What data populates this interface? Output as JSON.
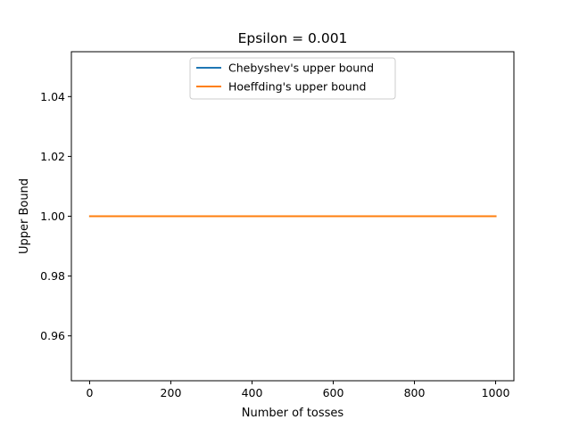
{
  "chart_data": {
    "type": "line",
    "title": "Epsilon = 0.001",
    "xlabel": "Number of tosses",
    "ylabel": "Upper Bound",
    "xlim": [
      -45,
      1045
    ],
    "ylim": [
      0.945,
      1.055
    ],
    "x_ticks": [
      0,
      200,
      400,
      600,
      800,
      1000
    ],
    "x_tick_labels": [
      "0",
      "200",
      "400",
      "600",
      "800",
      "1000"
    ],
    "y_ticks": [
      0.96,
      0.98,
      1.0,
      1.02,
      1.04
    ],
    "y_tick_labels": [
      "0.96",
      "0.98",
      "1.00",
      "1.02",
      "1.04"
    ],
    "grid": false,
    "legend_position": "top-center",
    "series": [
      {
        "name": "Chebyshev's upper bound",
        "color": "#1f77b4",
        "x": [
          1,
          1000
        ],
        "y": [
          1.0,
          1.0
        ]
      },
      {
        "name": "Hoeffding's upper bound",
        "color": "#ff7f0e",
        "x": [
          1,
          1000
        ],
        "y": [
          1.0,
          1.0
        ]
      }
    ]
  }
}
